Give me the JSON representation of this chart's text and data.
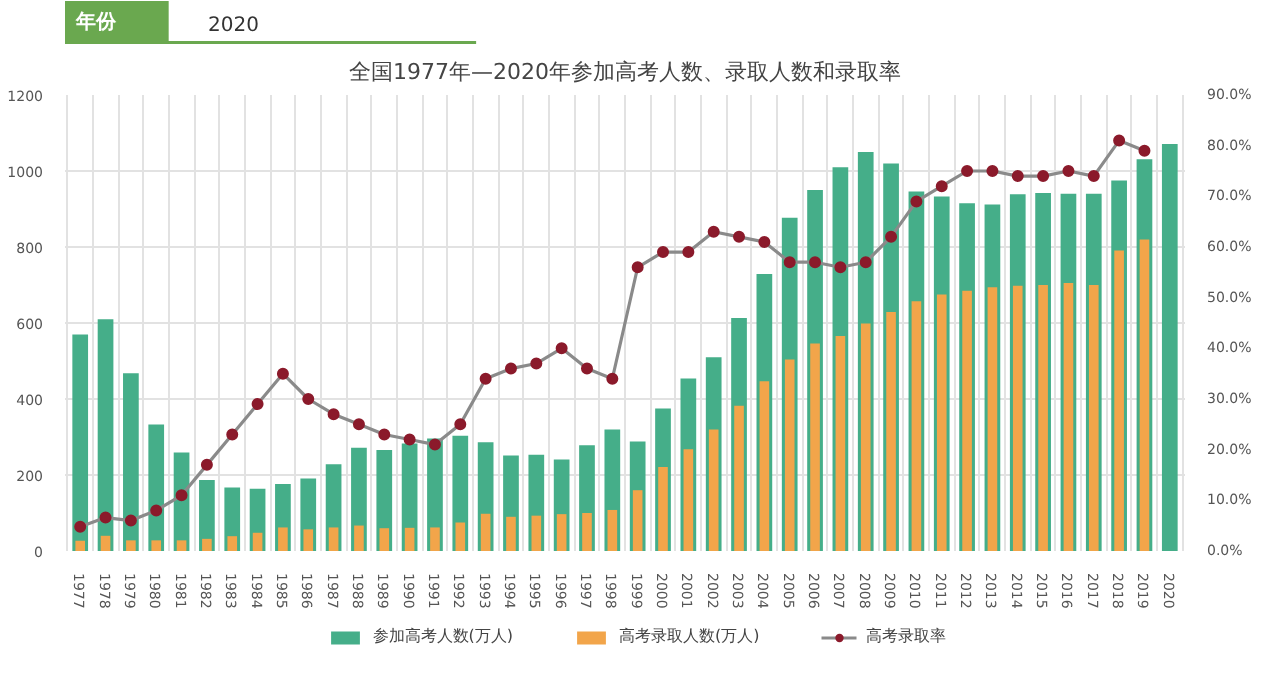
{
  "chart_data": {
    "type": "bar",
    "title": "全国1977年—2020年参加高考人数、录取人数和录取率",
    "annotations": [
      "年份",
      "2020"
    ],
    "categories": [
      "1977",
      "1978",
      "1979",
      "1980",
      "1981",
      "1982",
      "1983",
      "1984",
      "1985",
      "1986",
      "1987",
      "1988",
      "1989",
      "1990",
      "1991",
      "1992",
      "1993",
      "1994",
      "1995",
      "1996",
      "1997",
      "1998",
      "1999",
      "2000",
      "2001",
      "2002",
      "2003",
      "2004",
      "2005",
      "2006",
      "2007",
      "2008",
      "2009",
      "2010",
      "2011",
      "2012",
      "2013",
      "2014",
      "2015",
      "2016",
      "2017",
      "2018",
      "2019",
      "2020"
    ],
    "series": [
      {
        "name": "参加高考人数(万人)",
        "color": "#45ae89",
        "values": [
          570,
          610,
          468,
          333,
          259,
          187,
          167,
          164,
          176,
          191,
          228,
          272,
          266,
          283,
          296,
          303,
          286,
          251,
          253,
          241,
          278,
          320,
          288,
          375,
          454,
          510,
          613,
          729,
          877,
          950,
          1010,
          1050,
          1020,
          946,
          933,
          915,
          912,
          939,
          942,
          940,
          940,
          975,
          1031,
          1071
        ]
      },
      {
        "name": "高考录取人数(万人)",
        "color": "#f2a54a",
        "values": [
          27,
          40,
          28,
          28,
          28,
          32,
          39,
          48,
          62,
          57,
          62,
          67,
          60,
          61,
          62,
          75,
          98,
          90,
          93,
          97,
          100,
          108,
          160,
          221,
          268,
          320,
          382,
          447,
          504,
          546,
          566,
          599,
          629,
          657,
          675,
          685,
          694,
          698,
          700,
          705,
          700,
          791,
          820,
          null
        ]
      },
      {
        "name": "高考录取率",
        "type": "line",
        "axis": "y2",
        "color": "#8a8a8a",
        "values": [
          4.8,
          6.6,
          6,
          8,
          11,
          17,
          23,
          29,
          35,
          30,
          27,
          25,
          23,
          22,
          21,
          25,
          34,
          36,
          37,
          40,
          36,
          34,
          56,
          59,
          59,
          63,
          62,
          61,
          57,
          57,
          56,
          57,
          62,
          69,
          72,
          75,
          75,
          74,
          74,
          75,
          74,
          81,
          79,
          null
        ]
      }
    ],
    "ylim": [
      0,
      1200
    ],
    "yticks": [
      0,
      200,
      400,
      600,
      800,
      1000,
      1200
    ],
    "y2lim": [
      0,
      90
    ],
    "y2ticks": [
      {
        "value": 0,
        "label": "0.0%"
      },
      {
        "value": 10,
        "label": "10.0%"
      },
      {
        "value": 20,
        "label": "20.0%"
      },
      {
        "value": 30,
        "label": "30.0%"
      },
      {
        "value": 40,
        "label": "40.0%"
      },
      {
        "value": 50,
        "label": "50.0%"
      },
      {
        "value": 60,
        "label": "60.0%"
      },
      {
        "value": 70,
        "label": "70.0%"
      },
      {
        "value": 80,
        "label": "80.0%"
      },
      {
        "value": 90,
        "label": "90.0%"
      }
    ],
    "grid": true,
    "legend": "bottom",
    "marker": "circle"
  }
}
